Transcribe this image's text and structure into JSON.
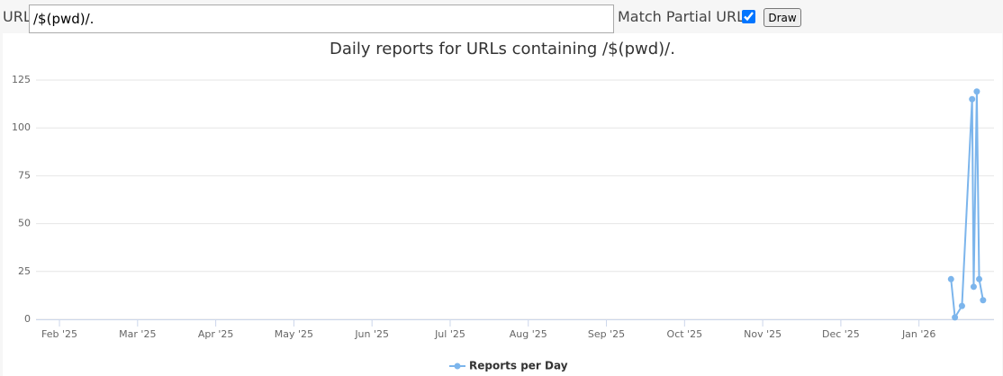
{
  "form": {
    "url_label": "URL",
    "url_value": "/$(pwd)/.",
    "match_label": "Match Partial URL",
    "match_checked": true,
    "button": "Draw"
  },
  "chart_data": {
    "type": "line",
    "title": "Daily reports for URLs containing /$(pwd)/.",
    "x": [
      11.41,
      11.46,
      11.55,
      11.68,
      11.7,
      11.74,
      11.77,
      11.82
    ],
    "series": [
      {
        "name": "Reports per Day",
        "color": "#7cb5ec",
        "values": [
          21,
          1,
          7,
          115,
          17,
          119,
          21,
          10
        ]
      }
    ],
    "xlim": [
      -0.3,
      11.96
    ],
    "xticks": [
      {
        "value": 0,
        "label": "Feb '25"
      },
      {
        "value": 1,
        "label": "Mar '25"
      },
      {
        "value": 2,
        "label": "Apr '25"
      },
      {
        "value": 3,
        "label": "May '25"
      },
      {
        "value": 4,
        "label": "Jun '25"
      },
      {
        "value": 5,
        "label": "Jul '25"
      },
      {
        "value": 6,
        "label": "Aug '25"
      },
      {
        "value": 7,
        "label": "Sep '25"
      },
      {
        "value": 8,
        "label": "Oct '25"
      },
      {
        "value": 9,
        "label": "Nov '25"
      },
      {
        "value": 10,
        "label": "Dec '25"
      },
      {
        "value": 11,
        "label": "Jan '26"
      }
    ],
    "ylim": [
      0,
      125
    ],
    "yticks": [
      0,
      25,
      50,
      75,
      100,
      125
    ],
    "grid": true,
    "legend": "bottom"
  }
}
